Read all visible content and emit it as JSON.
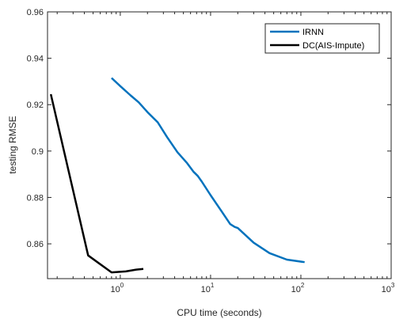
{
  "chart_data": {
    "type": "line",
    "title": "",
    "xlabel": "CPU time (seconds)",
    "ylabel": "testing RMSE",
    "x_scale": "log",
    "xlim": [
      0.1563,
      1000
    ],
    "ylim": [
      0.845,
      0.96
    ],
    "x_ticks": [
      {
        "value": 1,
        "base": "10",
        "exp": "0"
      },
      {
        "value": 10,
        "base": "10",
        "exp": "1"
      },
      {
        "value": 100,
        "base": "10",
        "exp": "2"
      },
      {
        "value": 1000,
        "base": "10",
        "exp": "3"
      }
    ],
    "y_ticks": [
      {
        "value": 0.86,
        "label": "0.86"
      },
      {
        "value": 0.88,
        "label": "0.88"
      },
      {
        "value": 0.9,
        "label": "0.9"
      },
      {
        "value": 0.92,
        "label": "0.92"
      },
      {
        "value": 0.94,
        "label": "0.94"
      },
      {
        "value": 0.96,
        "label": "0.96"
      }
    ],
    "grid": false,
    "legend_position": "top-right",
    "series": [
      {
        "name": "IRNN",
        "color": "#0072BD",
        "x": [
          0.8,
          1.0,
          1.3,
          1.6,
          2.0,
          2.6,
          3.3,
          4.3,
          5.5,
          6.5,
          7.2,
          8.0,
          10.0,
          13.0,
          16.5,
          18.5,
          20.0,
          30.0,
          45.0,
          70.0,
          110.0
        ],
        "y": [
          0.9315,
          0.928,
          0.924,
          0.921,
          0.9168,
          0.9124,
          0.906,
          0.8995,
          0.8948,
          0.891,
          0.8893,
          0.8868,
          0.881,
          0.8745,
          0.8685,
          0.8673,
          0.8668,
          0.8605,
          0.856,
          0.8532,
          0.8521
        ]
      },
      {
        "name": "DC(AIS-Impute)",
        "color": "#000000",
        "x": [
          0.17,
          0.44,
          0.8,
          1.15,
          1.5,
          1.8
        ],
        "y": [
          0.9245,
          0.855,
          0.8477,
          0.8481,
          0.8489,
          0.8492
        ]
      }
    ]
  }
}
